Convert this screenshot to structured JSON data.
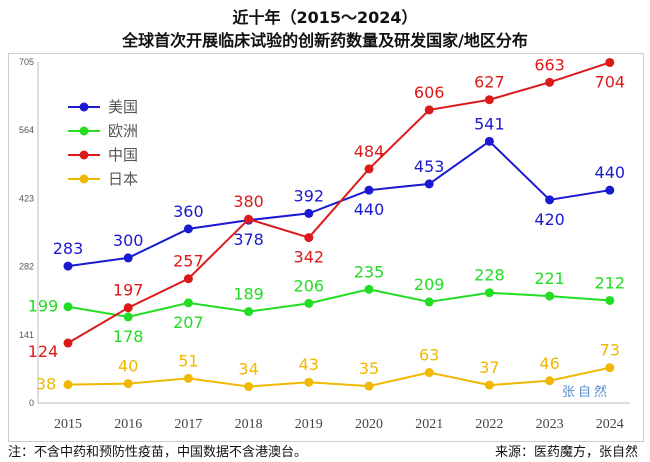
{
  "chart_data": {
    "type": "line",
    "title": "近十年（2015～2024）",
    "subtitle": "全球首次开展临床试验的创新药数量及研发国家/地区分布",
    "categories": [
      "2015",
      "2016",
      "2017",
      "2018",
      "2019",
      "2020",
      "2021",
      "2022",
      "2023",
      "2024"
    ],
    "ylim": [
      0,
      705
    ],
    "yticks": [
      "0",
      "141",
      "282",
      "423",
      "564",
      "705"
    ],
    "grid": false,
    "legend_placement": "top-left",
    "series": [
      {
        "name": "美国",
        "color": "#1a1ad0",
        "values": [
          283,
          300,
          360,
          378,
          392,
          440,
          453,
          541,
          420,
          440
        ]
      },
      {
        "name": "欧洲",
        "color": "#22dd22",
        "values": [
          199,
          178,
          207,
          189,
          206,
          235,
          209,
          228,
          221,
          212
        ]
      },
      {
        "name": "中国",
        "color": "#dd1a1a",
        "values": [
          124,
          197,
          257,
          380,
          342,
          484,
          606,
          627,
          663,
          704
        ]
      },
      {
        "name": "日本",
        "color": "#f0b800",
        "values": [
          38,
          40,
          51,
          34,
          43,
          35,
          63,
          37,
          46,
          73
        ]
      }
    ]
  },
  "note": "注：不含中药和预防性疫苗，中国数据不含港澳台。",
  "source": "来源：医药魔方，张自然",
  "watermark": "张自然"
}
